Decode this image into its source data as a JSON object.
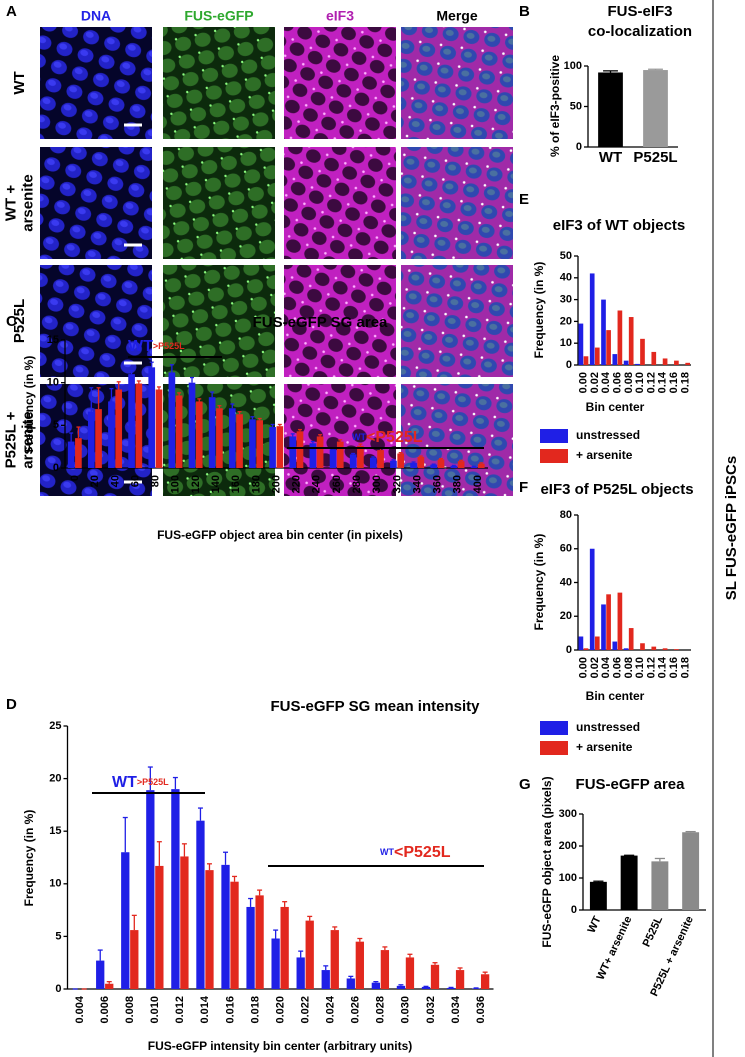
{
  "figure": {
    "panel_letters": [
      "A",
      "B",
      "C",
      "D",
      "E",
      "F",
      "G"
    ],
    "channels": [
      "DNA",
      "FUS-eGFP",
      "eIF3",
      "Merge"
    ],
    "conditions": [
      [
        "WT"
      ],
      [
        "WT +",
        "arsenite"
      ],
      [
        "P525L"
      ],
      [
        "P525L +",
        "arsenite"
      ]
    ],
    "side_label": "SL FUS-eGFP iPSCs"
  },
  "chart_data": [
    {
      "type": "bar",
      "title": [
        "FUS-eIF3",
        "co-localization"
      ],
      "ylabel": "% of eIF3-positive",
      "categories": [
        "WT",
        "P525L"
      ],
      "values": [
        92,
        95
      ],
      "errors": [
        2,
        1
      ],
      "colors": [
        "#000000",
        "#9a9a9a"
      ],
      "ylim": [
        0,
        100
      ],
      "yticks": [
        0,
        50,
        100
      ]
    },
    {
      "type": "bar",
      "title": "FUS-eGFP SG area",
      "xlabel": "FUS-eGFP object area bin center (in pixels)",
      "ylabel": "Frequency (in %)",
      "categories": [
        "0",
        "20",
        "40",
        "60",
        "80",
        "100",
        "120",
        "140",
        "160",
        "180",
        "200",
        "220",
        "240",
        "260",
        "280",
        "300",
        "320",
        "340",
        "360",
        "380",
        "400"
      ],
      "series": [
        {
          "color": "#1f1fe6",
          "values": [
            3.1,
            6.6,
            7.8,
            11.0,
            11.8,
            11.2,
            10.0,
            8.3,
            7.0,
            5.7,
            4.8,
            3.7,
            2.9,
            2.2,
            1.6,
            1.2,
            0.85,
            0.6,
            0.4,
            0.25,
            0.15
          ],
          "errors": [
            1.0,
            2.8,
            1.5,
            0.4,
            0.6,
            0.9,
            0.6,
            0.6,
            0.5,
            0.3,
            0.3,
            0.3,
            0.2,
            0.15,
            0.1,
            0.1,
            0.1,
            0.1,
            0.05,
            0.05,
            0.05
          ]
        },
        {
          "color": "#e2281e",
          "values": [
            3.5,
            6.9,
            9.2,
            9.9,
            9.2,
            8.5,
            7.8,
            7.0,
            6.3,
            5.6,
            4.9,
            4.3,
            3.7,
            3.1,
            2.6,
            2.1,
            1.7,
            1.3,
            1.0,
            0.8,
            0.5
          ],
          "errors": [
            1.3,
            2.5,
            0.9,
            0.3,
            0.3,
            0.3,
            0.3,
            0.3,
            0.3,
            0.2,
            0.2,
            0.2,
            0.2,
            0.2,
            0.2,
            0.2,
            0.1,
            0.1,
            0.1,
            0.1,
            0.1
          ]
        }
      ],
      "annotations": [
        [
          "WT",
          ">P525L"
        ],
        [
          "WT",
          "<P525L"
        ]
      ],
      "ylim": [
        0,
        15
      ],
      "yticks": [
        0,
        5,
        10,
        15
      ]
    },
    {
      "type": "bar",
      "title": "FUS-eGFP SG mean intensity",
      "xlabel": "FUS-eGFP intensity bin center (arbitrary units)",
      "ylabel": "Frequency (in %)",
      "categories": [
        "0.004",
        "0.006",
        "0.008",
        "0.010",
        "0.012",
        "0.014",
        "0.016",
        "0.018",
        "0.020",
        "0.022",
        "0.024",
        "0.026",
        "0.028",
        "0.030",
        "0.032",
        "0.034",
        "0.036"
      ],
      "series": [
        {
          "color": "#1f1fe6",
          "values": [
            0,
            2.7,
            13.0,
            18.9,
            19.0,
            16.0,
            11.8,
            7.8,
            4.8,
            3.0,
            1.8,
            1.0,
            0.6,
            0.3,
            0.2,
            0.1,
            0.05
          ],
          "errors": [
            0,
            1.0,
            3.3,
            2.2,
            1.1,
            1.2,
            1.2,
            0.8,
            0.8,
            0.6,
            0.4,
            0.2,
            0.1,
            0.1,
            0.05,
            0.05,
            0.05
          ]
        },
        {
          "color": "#e2281e",
          "values": [
            0,
            0.5,
            5.6,
            11.7,
            12.6,
            11.3,
            10.2,
            8.9,
            7.8,
            6.5,
            5.6,
            4.5,
            3.7,
            3.0,
            2.3,
            1.8,
            1.4
          ],
          "errors": [
            0,
            0.2,
            1.4,
            2.3,
            1.2,
            0.6,
            0.5,
            0.5,
            0.5,
            0.4,
            0.3,
            0.3,
            0.3,
            0.3,
            0.2,
            0.2,
            0.2
          ]
        }
      ],
      "annotations": [
        [
          "WT",
          ">P525L"
        ],
        [
          "WT",
          "<P525L"
        ]
      ],
      "ylim": [
        0,
        25
      ],
      "yticks": [
        0,
        5,
        10,
        15,
        20,
        25
      ]
    },
    {
      "type": "bar",
      "title": "eIF3 of WT objects",
      "xlabel": "Bin center",
      "ylabel": "Frequency (in %)",
      "categories": [
        "0.00",
        "0.02",
        "0.04",
        "0.06",
        "0.08",
        "0.10",
        "0.12",
        "0.14",
        "0.16",
        "0.18"
      ],
      "series": [
        {
          "name": "unstressed",
          "color": "#1f1fe6",
          "values": [
            19,
            42,
            30,
            5,
            2,
            0.5,
            0,
            0,
            0,
            0
          ]
        },
        {
          "name": "+ arsenite",
          "color": "#e2281e",
          "values": [
            4,
            8,
            16,
            25,
            22,
            12,
            6,
            3,
            2,
            1
          ]
        }
      ],
      "ylim": [
        0,
        50
      ],
      "yticks": [
        0,
        10,
        20,
        30,
        40,
        50
      ]
    },
    {
      "type": "bar",
      "title": "eIF3 of P525L objects",
      "xlabel": "Bin center",
      "ylabel": "Frequency (in %)",
      "categories": [
        "0.00",
        "0.02",
        "0.04",
        "0.06",
        "0.08",
        "0.10",
        "0.12",
        "0.14",
        "0.16",
        "0.18"
      ],
      "series": [
        {
          "name": "unstressed",
          "color": "#1f1fe6",
          "values": [
            8,
            60,
            27,
            5,
            1,
            0,
            0,
            0,
            0,
            0
          ]
        },
        {
          "name": "+ arsenite",
          "color": "#e2281e",
          "values": [
            1,
            8,
            33,
            34,
            13,
            4,
            2,
            1,
            0.5,
            0
          ]
        }
      ],
      "ylim": [
        0,
        80
      ],
      "yticks": [
        0,
        20,
        40,
        60,
        80
      ]
    },
    {
      "type": "bar",
      "title": "FUS-eGFP area",
      "ylabel": "FUS-eGFP object area (pixels)",
      "categories": [
        "WT",
        "WT+ arsenite",
        "P525L",
        "P525L + arsenite"
      ],
      "values": [
        88,
        170,
        152,
        243
      ],
      "errors": [
        2,
        1,
        9,
        2
      ],
      "colors": [
        "#000000",
        "#000000",
        "#8a8a8a",
        "#8a8a8a"
      ],
      "ylim": [
        0,
        300
      ],
      "yticks": [
        0,
        100,
        200,
        300
      ]
    }
  ]
}
